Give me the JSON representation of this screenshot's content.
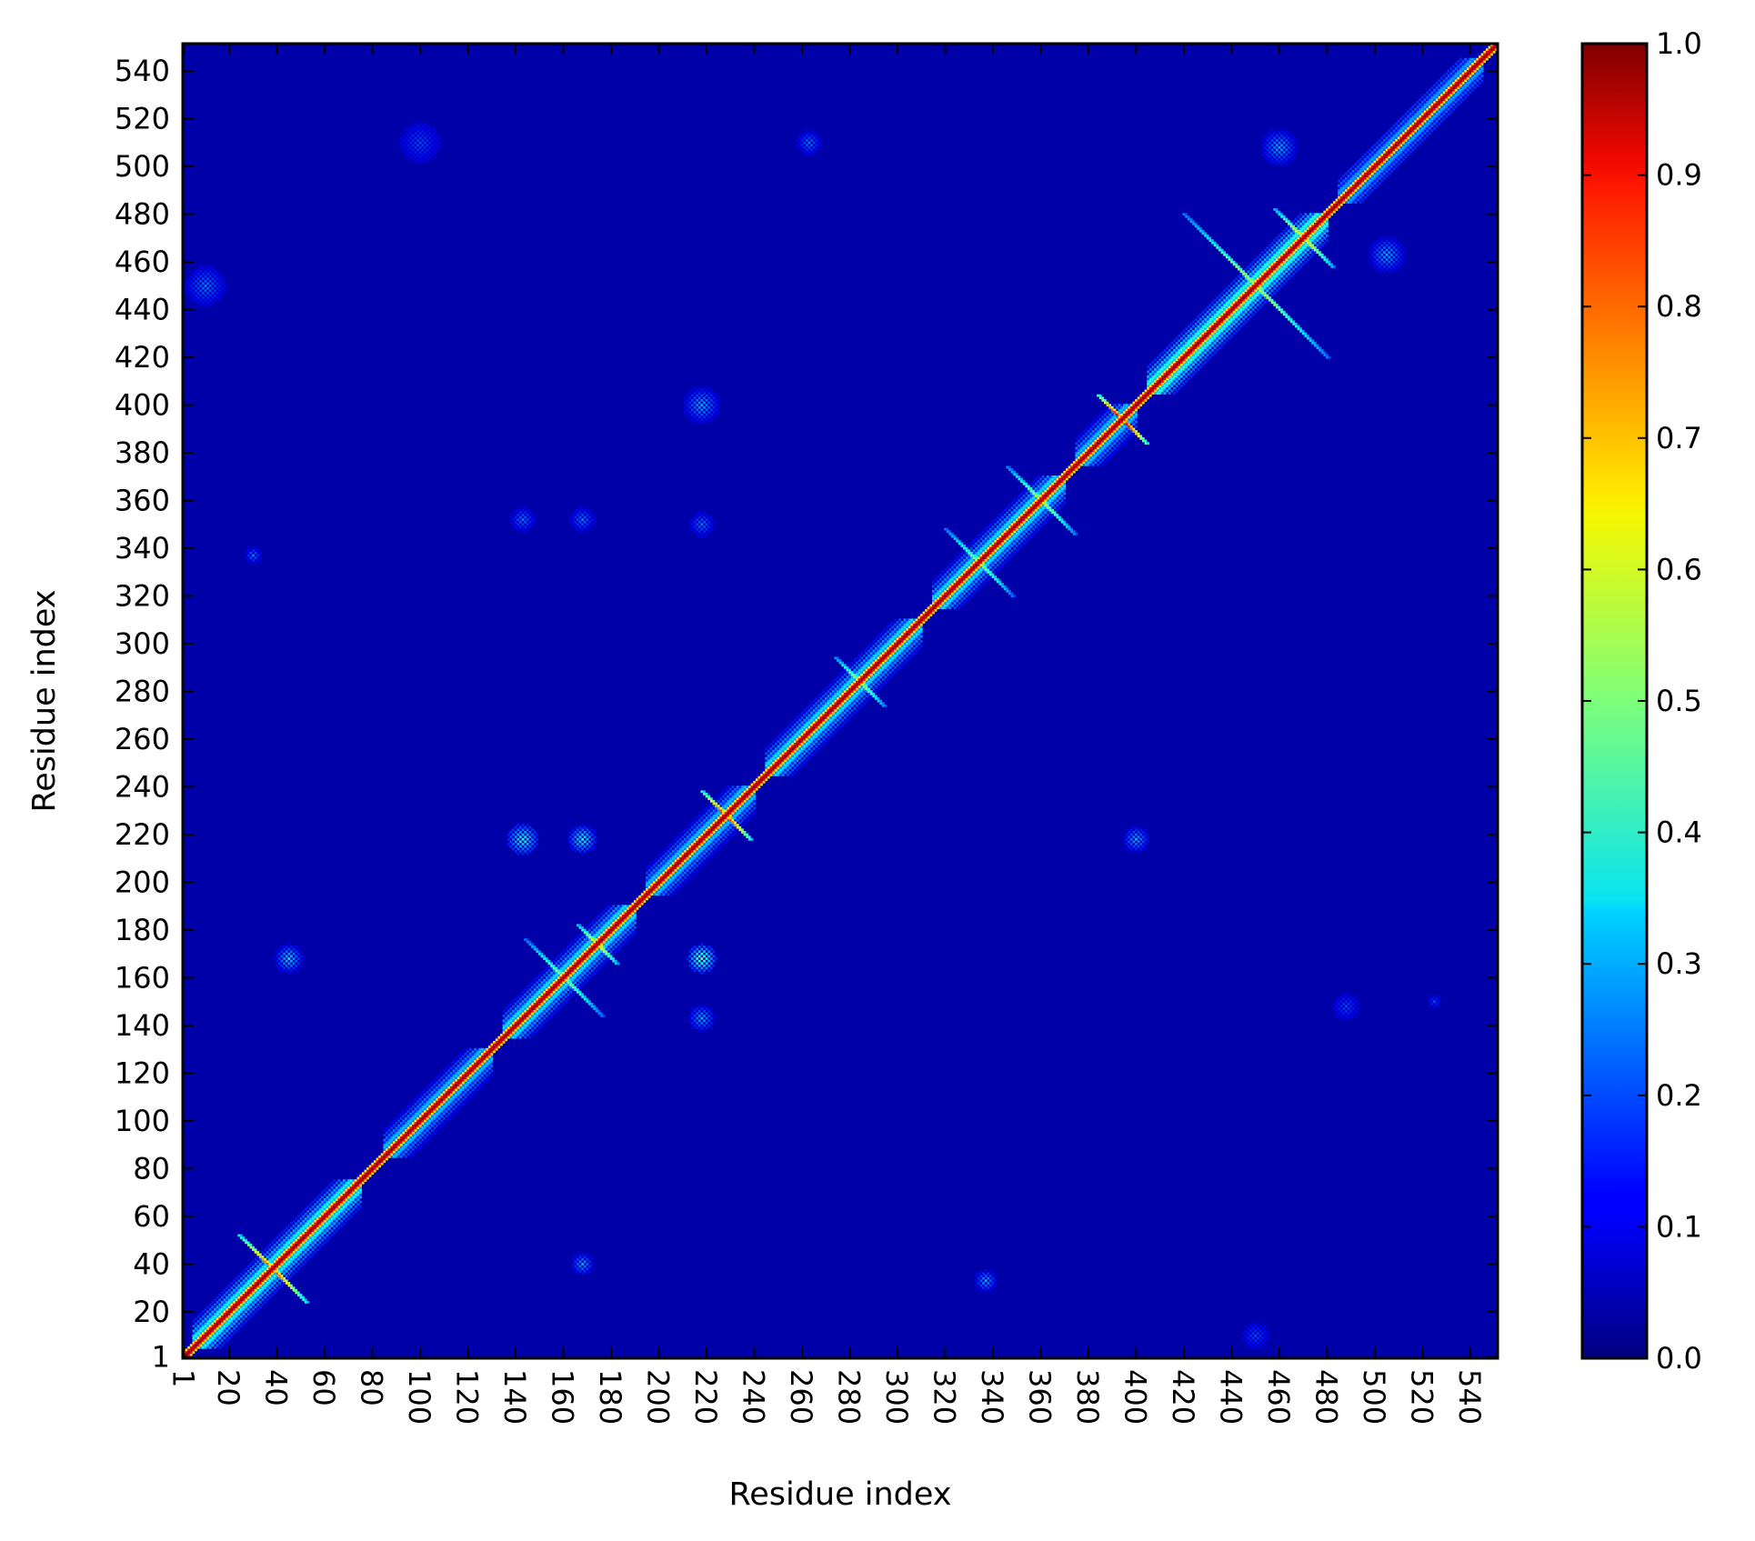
{
  "chart_data": {
    "type": "heatmap",
    "title": "",
    "xlabel": "Residue index",
    "ylabel": "Residue index",
    "n_residues": 551,
    "xlim": [
      1,
      551
    ],
    "ylim": [
      1,
      551
    ],
    "x_ticks": [
      1,
      20,
      40,
      60,
      80,
      100,
      120,
      140,
      160,
      180,
      200,
      220,
      240,
      260,
      280,
      300,
      320,
      340,
      360,
      380,
      400,
      420,
      440,
      460,
      480,
      500,
      520,
      540
    ],
    "y_ticks": [
      1,
      20,
      40,
      60,
      80,
      100,
      120,
      140,
      160,
      180,
      200,
      220,
      240,
      260,
      280,
      300,
      320,
      340,
      360,
      380,
      400,
      420,
      440,
      460,
      480,
      500,
      520,
      540
    ],
    "colormap": "jet",
    "colorbar": {
      "min": 0.0,
      "max": 1.0,
      "ticks": [
        "0.0",
        "0.1",
        "0.2",
        "0.3",
        "0.4",
        "0.5",
        "0.6",
        "0.7",
        "0.8",
        "0.9",
        "1.0"
      ]
    },
    "grid": false,
    "background_value": 0.04,
    "diagonal_value": 1.0,
    "symmetric": true,
    "contact_features": [
      {
        "type": "helix_block",
        "range": [
          5,
          75
        ],
        "value": 0.6
      },
      {
        "type": "helix_block",
        "range": [
          85,
          130
        ],
        "value": 0.5
      },
      {
        "type": "helix_block",
        "range": [
          135,
          190
        ],
        "value": 0.55
      },
      {
        "type": "helix_block",
        "range": [
          195,
          240
        ],
        "value": 0.5
      },
      {
        "type": "helix_block",
        "range": [
          245,
          310
        ],
        "value": 0.55
      },
      {
        "type": "helix_block",
        "range": [
          315,
          370
        ],
        "value": 0.55
      },
      {
        "type": "helix_block",
        "range": [
          375,
          400
        ],
        "value": 0.5
      },
      {
        "type": "helix_block",
        "range": [
          405,
          480
        ],
        "value": 0.65
      },
      {
        "type": "helix_block",
        "range": [
          485,
          545
        ],
        "value": 0.45
      },
      {
        "type": "cross",
        "center": [
          38,
          38
        ],
        "size": 14,
        "value": 0.85
      },
      {
        "type": "cross",
        "center": [
          160,
          160
        ],
        "size": 16,
        "value": 0.55
      },
      {
        "type": "cross",
        "center": [
          174,
          174
        ],
        "size": 8,
        "value": 0.7
      },
      {
        "type": "cross",
        "center": [
          228,
          228
        ],
        "size": 10,
        "value": 0.9
      },
      {
        "type": "cross",
        "center": [
          284,
          284
        ],
        "size": 10,
        "value": 0.6
      },
      {
        "type": "cross",
        "center": [
          334,
          334
        ],
        "size": 14,
        "value": 0.55
      },
      {
        "type": "cross",
        "center": [
          360,
          360
        ],
        "size": 14,
        "value": 0.6
      },
      {
        "type": "cross",
        "center": [
          394,
          394
        ],
        "size": 10,
        "value": 1.0
      },
      {
        "type": "cross",
        "center": [
          450,
          450
        ],
        "size": 30,
        "value": 0.6
      },
      {
        "type": "cross",
        "center": [
          470,
          470
        ],
        "size": 12,
        "value": 0.7
      },
      {
        "type": "patch",
        "center": [
          45,
          168
        ],
        "size": 6,
        "value": 0.35
      },
      {
        "type": "patch",
        "center": [
          143,
          218
        ],
        "size": 7,
        "value": 0.4
      },
      {
        "type": "patch",
        "center": [
          168,
          218
        ],
        "size": 6,
        "value": 0.4
      },
      {
        "type": "patch",
        "center": [
          218,
          168
        ],
        "size": 6,
        "value": 0.5
      },
      {
        "type": "patch",
        "center": [
          218,
          143
        ],
        "size": 6,
        "value": 0.3
      },
      {
        "type": "patch",
        "center": [
          143,
          352
        ],
        "size": 6,
        "value": 0.25
      },
      {
        "type": "patch",
        "center": [
          168,
          352
        ],
        "size": 6,
        "value": 0.25
      },
      {
        "type": "patch",
        "center": [
          218,
          350
        ],
        "size": 6,
        "value": 0.25
      },
      {
        "type": "patch",
        "center": [
          218,
          400
        ],
        "size": 8,
        "value": 0.3
      },
      {
        "type": "patch",
        "center": [
          30,
          337
        ],
        "size": 4,
        "value": 0.25
      },
      {
        "type": "patch",
        "center": [
          337,
          33
        ],
        "size": 5,
        "value": 0.3
      },
      {
        "type": "patch",
        "center": [
          168,
          40
        ],
        "size": 5,
        "value": 0.3
      },
      {
        "type": "patch",
        "center": [
          400,
          218
        ],
        "size": 6,
        "value": 0.3
      },
      {
        "type": "patch",
        "center": [
          10,
          450
        ],
        "size": 10,
        "value": 0.25
      },
      {
        "type": "patch",
        "center": [
          450,
          10
        ],
        "size": 8,
        "value": 0.2
      },
      {
        "type": "patch",
        "center": [
          488,
          148
        ],
        "size": 8,
        "value": 0.2
      },
      {
        "type": "patch",
        "center": [
          525,
          150
        ],
        "size": 4,
        "value": 0.2
      },
      {
        "type": "patch",
        "center": [
          100,
          510
        ],
        "size": 12,
        "value": 0.2
      },
      {
        "type": "patch",
        "center": [
          263,
          510
        ],
        "size": 6,
        "value": 0.25
      },
      {
        "type": "patch",
        "center": [
          460,
          508
        ],
        "size": 8,
        "value": 0.3
      },
      {
        "type": "patch",
        "center": [
          505,
          463
        ],
        "size": 8,
        "value": 0.3
      }
    ]
  }
}
